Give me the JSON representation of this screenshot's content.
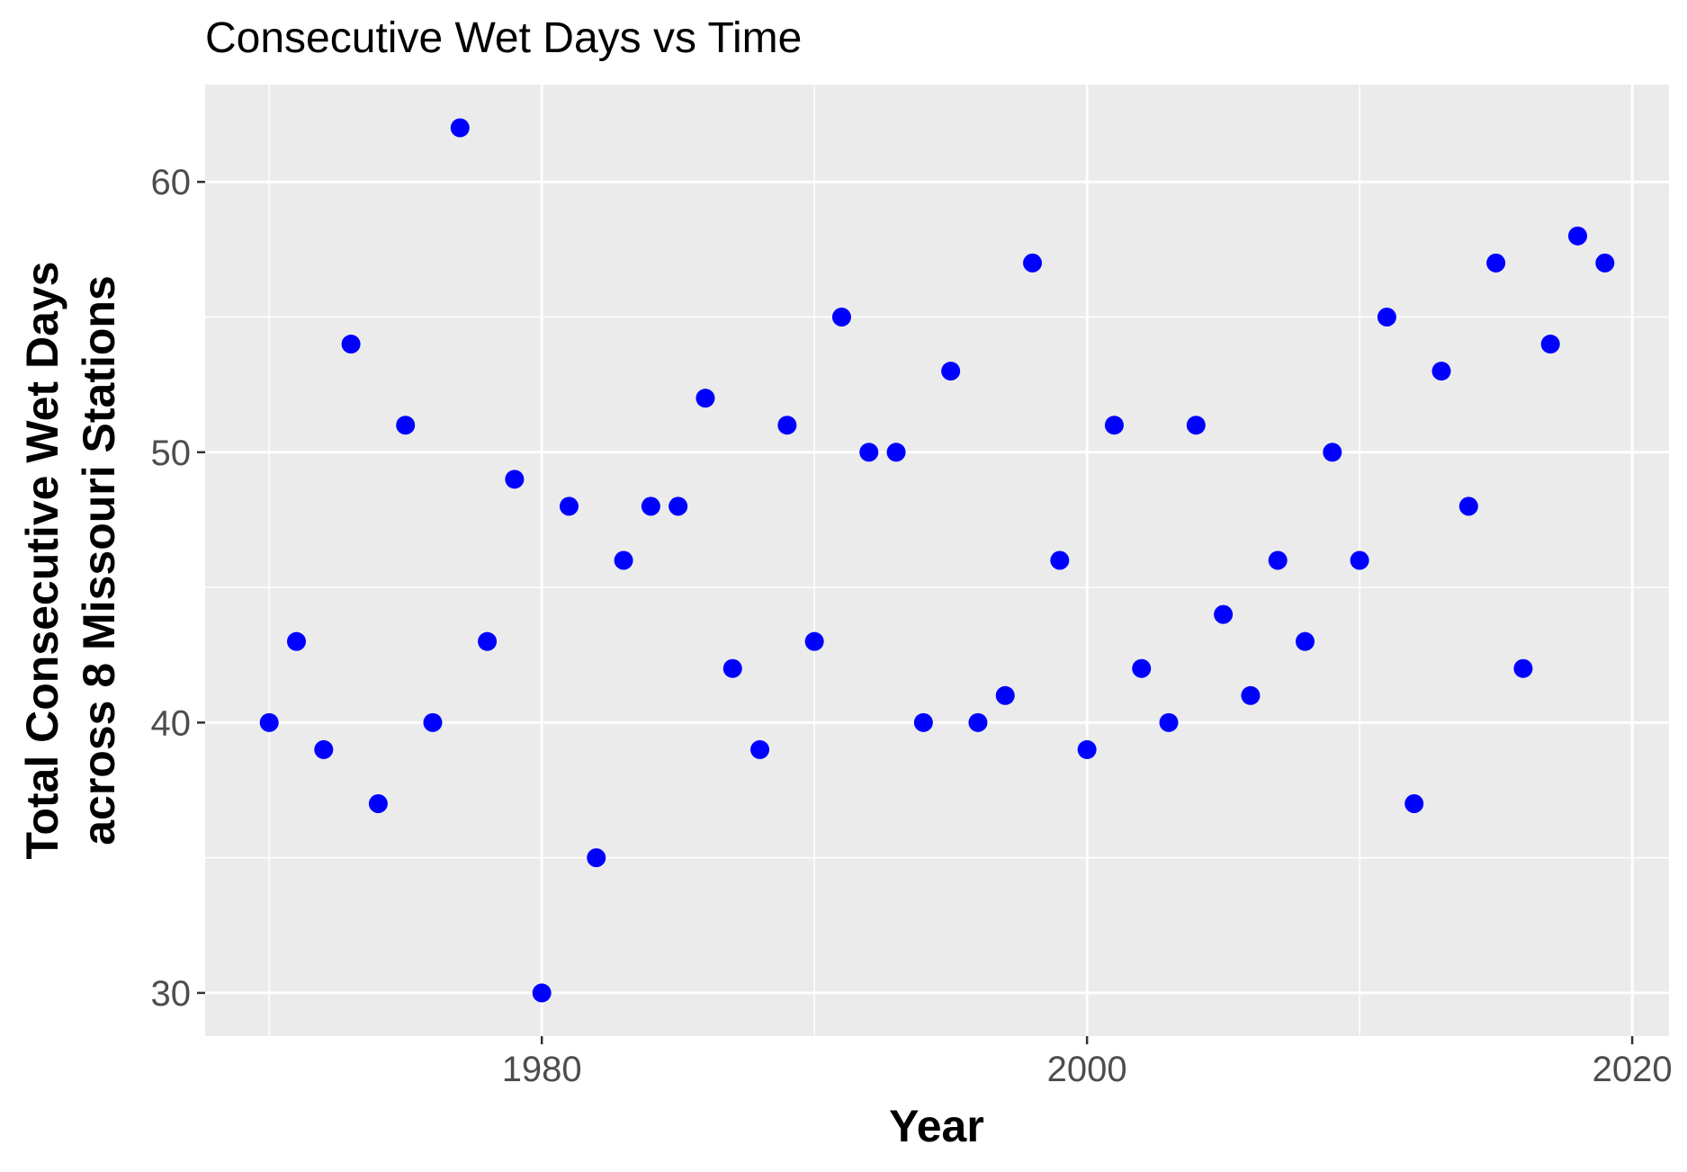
{
  "chart_data": {
    "type": "scatter",
    "title": "Consecutive Wet Days vs Time",
    "xlabel": "Year",
    "ylabel_lines": [
      "Total Consecutive Wet Days",
      "across 8 Missouri Stations"
    ],
    "xlim": [
      1967.65,
      2021.35
    ],
    "ylim": [
      28.4,
      63.6
    ],
    "x_ticks": [
      1980,
      2000,
      2020
    ],
    "x_minor_ticks": [
      1970,
      1990,
      2010
    ],
    "y_ticks": [
      30,
      40,
      50,
      60
    ],
    "y_minor_ticks": [
      35,
      45,
      55
    ],
    "x_tick_labels": [
      "1980",
      "2000",
      "2020"
    ],
    "y_tick_labels": [
      "30",
      "40",
      "50",
      "60"
    ],
    "grid": true,
    "colors": {
      "panel": "#ebebeb",
      "grid": "#ffffff",
      "point": "#0000ff",
      "tick": "#333333"
    },
    "series": [
      {
        "name": "Consecutive Wet Days",
        "x": [
          1970,
          1971,
          1972,
          1973,
          1974,
          1975,
          1976,
          1977,
          1978,
          1979,
          1980,
          1981,
          1982,
          1983,
          1984,
          1985,
          1986,
          1987,
          1988,
          1989,
          1990,
          1991,
          1992,
          1993,
          1994,
          1995,
          1996,
          1997,
          1998,
          1999,
          2000,
          2001,
          2002,
          2003,
          2004,
          2005,
          2006,
          2007,
          2008,
          2009,
          2010,
          2011,
          2012,
          2013,
          2014,
          2015,
          2016,
          2017,
          2018,
          2019
        ],
        "y": [
          40,
          43,
          39,
          54,
          37,
          51,
          40,
          62,
          43,
          49,
          30,
          48,
          35,
          46,
          48,
          48,
          52,
          42,
          39,
          51,
          43,
          55,
          50,
          50,
          40,
          53,
          40,
          41,
          57,
          46,
          39,
          51,
          42,
          40,
          51,
          44,
          41,
          46,
          43,
          50,
          46,
          55,
          37,
          53,
          48,
          57,
          42,
          54,
          58,
          57
        ]
      }
    ]
  }
}
